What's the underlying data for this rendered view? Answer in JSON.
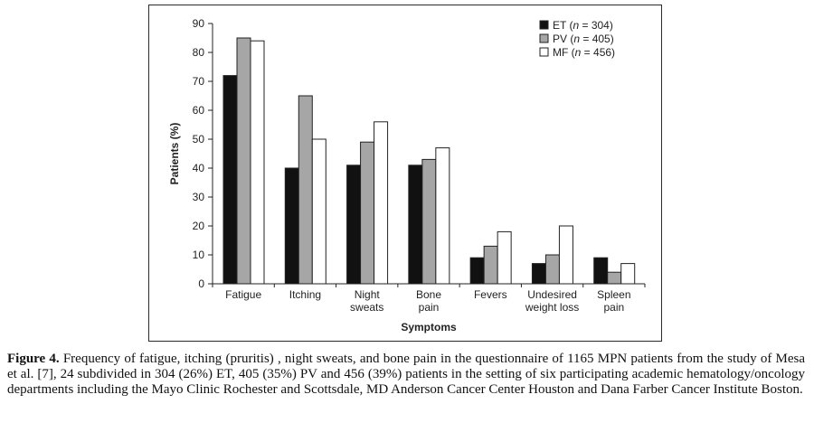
{
  "chart_data": {
    "type": "bar",
    "title": "",
    "xlabel": "Symptoms",
    "ylabel": "Patients (%)",
    "ylim": [
      0,
      90
    ],
    "yticks": [
      "0",
      "10",
      "20",
      "30",
      "40",
      "50",
      "60",
      "70",
      "80",
      "90"
    ],
    "categories": [
      [
        "Fatigue"
      ],
      [
        "Itching"
      ],
      [
        "Night",
        "sweats"
      ],
      [
        "Bone",
        "pain"
      ],
      [
        "Fevers"
      ],
      [
        "Undesired",
        "weight loss"
      ],
      [
        "Spleen",
        "pain"
      ]
    ],
    "series": [
      {
        "name": "ET",
        "n": "304",
        "color": "#111111",
        "values": [
          72,
          40,
          41,
          41,
          9,
          7,
          9
        ]
      },
      {
        "name": "PV",
        "n": "405",
        "color": "#a6a6a6",
        "values": [
          85,
          65,
          49,
          43,
          13,
          10,
          4
        ]
      },
      {
        "name": "MF",
        "n": "456",
        "color": "#ffffff",
        "values": [
          84,
          50,
          56,
          47,
          18,
          20,
          7
        ]
      }
    ],
    "legend_position": "top-right",
    "grid": false
  },
  "caption": {
    "label": "Figure 4.",
    "text": " Frequency of fatigue, itching (pruritis) , night sweats, and bone pain in the questionnaire of 1165 MPN patients from the study of Mesa et al. [7], 24 subdivided in 304 (26%) ET, 405 (35%) PV and 456 (39%) patients in the setting of six participating academic hematology/oncology departments including the Mayo Clinic Rochester and Scottsdale, MD Anderson Cancer Center Houston and Dana Farber Cancer Institute Boston."
  }
}
